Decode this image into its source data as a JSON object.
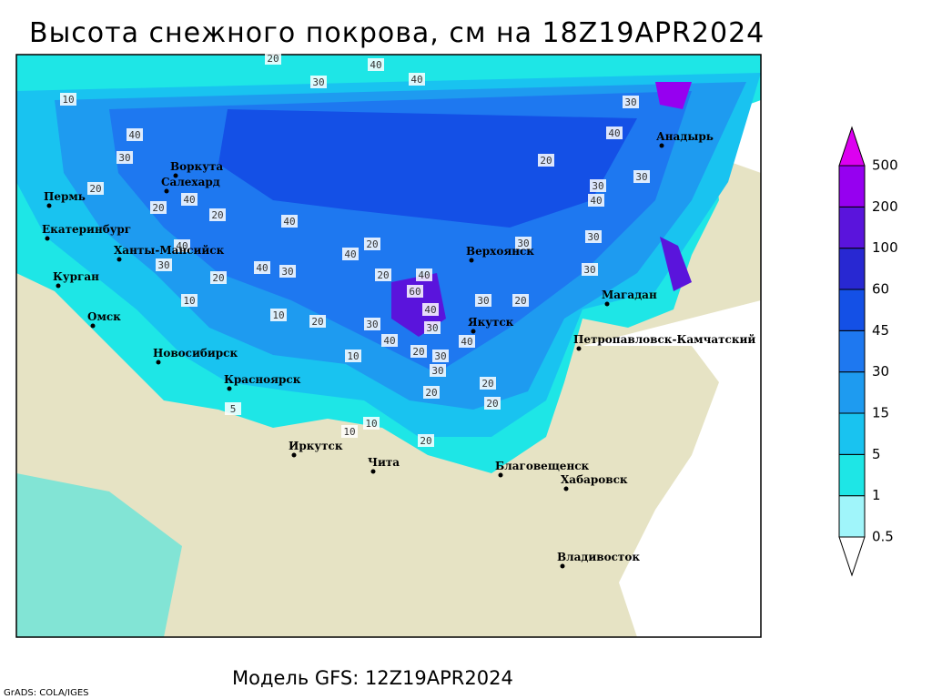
{
  "header": {
    "title": "Высота снежного покрова, см на 18Z19APR2024"
  },
  "footer": {
    "model": "Модель GFS: 12Z19APR2024",
    "credit": "GrADS: COLA/IGES"
  },
  "colorbar": {
    "levels": [
      0.5,
      1,
      5,
      15,
      30,
      45,
      60,
      100,
      200,
      500
    ],
    "colors": [
      "#ffffff",
      "#a0f5fa",
      "#1ee6e6",
      "#19c3f0",
      "#1e9bf0",
      "#1e78f0",
      "#1450e6",
      "#2828d2",
      "#5a14dc",
      "#9600f0",
      "#dc00f0"
    ]
  },
  "cities": [
    "Воркута",
    "Салехард",
    "Пермь",
    "Екатеринбург",
    "Ханты-Мансийск",
    "Курган",
    "Омск",
    "Новосибирск",
    "Красноярск",
    "Иркутск",
    "Чита",
    "Благовещенск",
    "Хабаровск",
    "Владивосток",
    "Верхоянск",
    "Якутск",
    "Магадан",
    "Петропавловск-Камчатский",
    "Анадырь"
  ],
  "contour_labels": [
    20,
    40,
    40,
    30,
    10,
    30,
    40,
    20,
    30,
    40,
    40,
    20,
    30,
    40,
    30,
    20,
    40,
    20,
    30,
    20,
    30,
    40,
    40,
    30,
    40,
    30,
    20,
    40,
    10,
    20,
    30,
    20,
    60,
    40,
    30,
    40,
    20,
    30,
    20,
    10,
    10,
    20,
    40,
    20,
    30,
    5,
    10,
    20,
    10,
    30,
    30,
    20
  ]
}
